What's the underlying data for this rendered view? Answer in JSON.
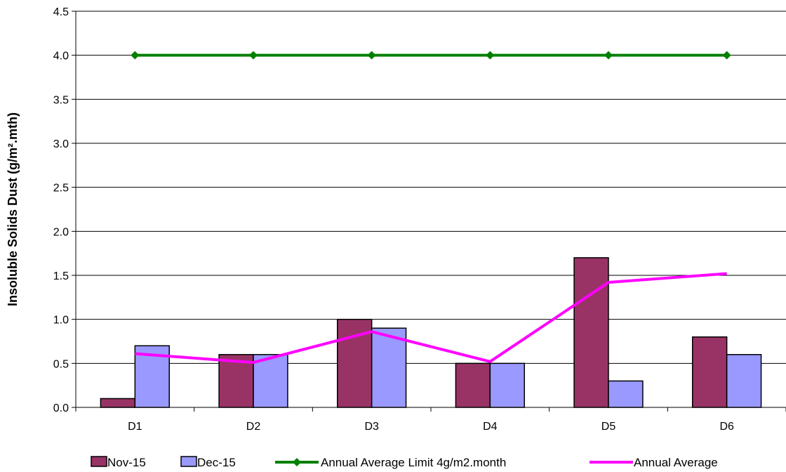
{
  "chart_data": {
    "type": "bar",
    "title": "",
    "xlabel": "",
    "ylabel": "Insoluble Solids Dust (g/m².mth)",
    "ylim": [
      0,
      4.5
    ],
    "yticks": [
      "0.0",
      "0.5",
      "1.0",
      "1.5",
      "2.0",
      "2.5",
      "3.0",
      "3.5",
      "4.0",
      "4.5"
    ],
    "grid": true,
    "legend_position": "bottom",
    "categories": [
      "D1",
      "D2",
      "D3",
      "D4",
      "D5",
      "D6"
    ],
    "series": [
      {
        "name": "Nov-15",
        "kind": "bar",
        "color": "#993366",
        "values": [
          0.1,
          0.6,
          1.0,
          0.5,
          1.7,
          0.8
        ]
      },
      {
        "name": "Dec-15",
        "kind": "bar",
        "color": "#9999FF",
        "values": [
          0.7,
          0.6,
          0.9,
          0.5,
          0.3,
          0.6
        ]
      },
      {
        "name": "Annual Average Limit 4g/m2.month",
        "kind": "line",
        "marker": "diamond",
        "color": "#008000",
        "values": [
          4.0,
          4.0,
          4.0,
          4.0,
          4.0,
          4.0
        ]
      },
      {
        "name": "Annual Average",
        "kind": "line",
        "marker": "none",
        "color": "#FF00FF",
        "values": [
          0.61,
          0.51,
          0.86,
          0.52,
          1.42,
          1.52
        ]
      }
    ]
  }
}
